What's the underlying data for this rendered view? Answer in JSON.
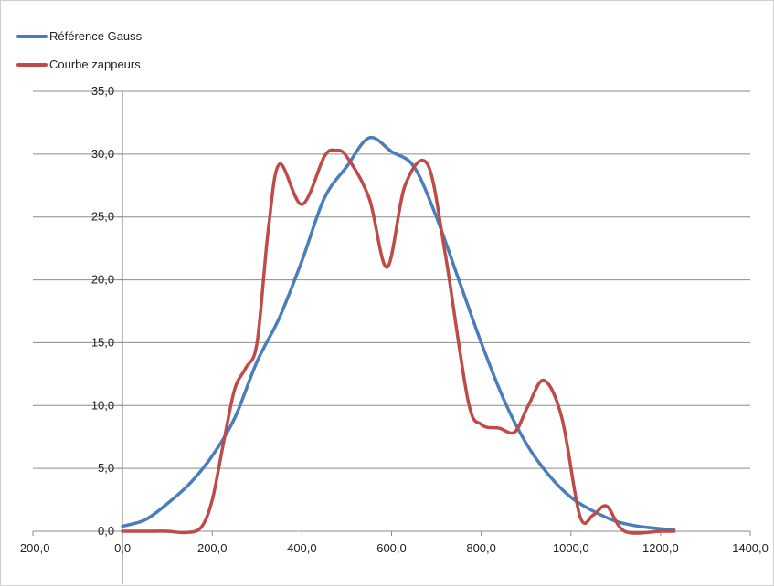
{
  "chart_data": {
    "type": "line",
    "title": "",
    "xlabel": "",
    "ylabel": "",
    "xlim": [
      -200,
      1400
    ],
    "ylim": [
      0,
      35
    ],
    "x_ticks": [
      -200,
      0,
      200,
      400,
      600,
      800,
      1000,
      1200,
      1400
    ],
    "y_ticks": [
      0,
      5,
      10,
      15,
      20,
      25,
      30,
      35
    ],
    "x_tick_labels": [
      "-200,0",
      "0,0",
      "200,0",
      "400,0",
      "600,0",
      "800,0",
      "1000,0",
      "1200,0",
      "1400,0"
    ],
    "y_tick_labels": [
      "0,0",
      "5,0",
      "10,0",
      "15,0",
      "20,0",
      "25,0",
      "30,0",
      "35,0"
    ],
    "grid": "horizontal",
    "legend": "top-left",
    "series": [
      {
        "name": "Référence Gauss",
        "color": "#4a7ebb",
        "points": [
          [
            0,
            0.4
          ],
          [
            50,
            0.9
          ],
          [
            100,
            2.2
          ],
          [
            150,
            3.8
          ],
          [
            200,
            6.0
          ],
          [
            250,
            9.0
          ],
          [
            300,
            13.5
          ],
          [
            350,
            17.0
          ],
          [
            400,
            21.5
          ],
          [
            450,
            26.5
          ],
          [
            500,
            29.0
          ],
          [
            550,
            31.3
          ],
          [
            600,
            30.2
          ],
          [
            650,
            29.0
          ],
          [
            700,
            25.0
          ],
          [
            750,
            20.0
          ],
          [
            800,
            15.0
          ],
          [
            850,
            10.5
          ],
          [
            900,
            7.0
          ],
          [
            950,
            4.5
          ],
          [
            1000,
            2.7
          ],
          [
            1050,
            1.6
          ],
          [
            1100,
            0.8
          ],
          [
            1150,
            0.4
          ],
          [
            1200,
            0.2
          ],
          [
            1230,
            0.1
          ]
        ]
      },
      {
        "name": "Courbe zappeurs",
        "color": "#be4b48",
        "points": [
          [
            0,
            0.0
          ],
          [
            50,
            0.0
          ],
          [
            100,
            0.0
          ],
          [
            140,
            -0.1
          ],
          [
            175,
            0.3
          ],
          [
            200,
            2.5
          ],
          [
            225,
            7.0
          ],
          [
            250,
            11.3
          ],
          [
            275,
            13.0
          ],
          [
            300,
            15.0
          ],
          [
            325,
            24.0
          ],
          [
            350,
            29.2
          ],
          [
            400,
            26.0
          ],
          [
            450,
            29.8
          ],
          [
            475,
            30.3
          ],
          [
            500,
            29.8
          ],
          [
            550,
            26.5
          ],
          [
            590,
            21.0
          ],
          [
            630,
            27.5
          ],
          [
            680,
            29.2
          ],
          [
            720,
            22.0
          ],
          [
            770,
            10.5
          ],
          [
            800,
            8.5
          ],
          [
            840,
            8.2
          ],
          [
            875,
            7.9
          ],
          [
            905,
            10.0
          ],
          [
            940,
            12.0
          ],
          [
            980,
            9.0
          ],
          [
            1020,
            1.2
          ],
          [
            1050,
            1.3
          ],
          [
            1080,
            2.0
          ],
          [
            1120,
            0.0
          ],
          [
            1200,
            0.0
          ],
          [
            1230,
            0.0
          ]
        ]
      }
    ]
  }
}
